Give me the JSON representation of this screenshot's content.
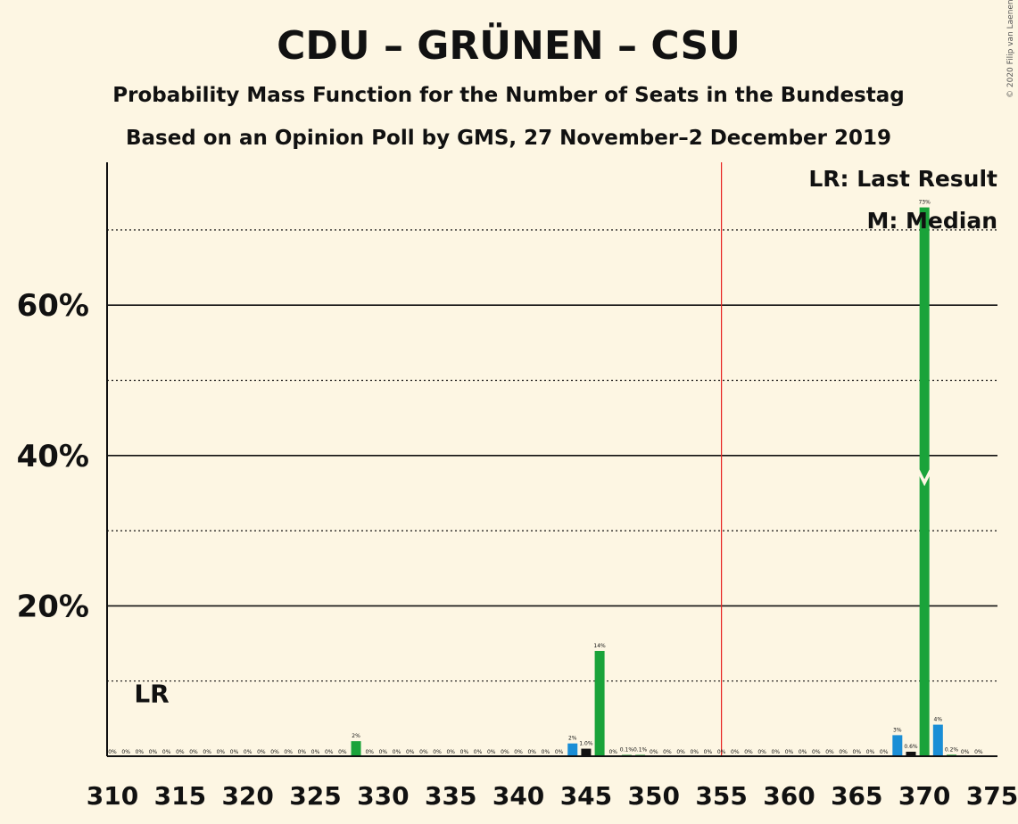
{
  "chart_data": {
    "type": "bar",
    "title": "CDU – GRÜNEN – CSU",
    "subtitle": "Probability Mass Function for the Number of Seats in the Bundestag",
    "subtitle2": "Based on an Opinion Poll by GMS, 27 November–2 December 2019",
    "copyright": "© 2020 Filip van Laenen",
    "xlabel": "",
    "ylabel": "",
    "xlim": [
      310,
      375
    ],
    "ylim": [
      0,
      79
    ],
    "x_ticks": [
      "310",
      "315",
      "320",
      "325",
      "330",
      "335",
      "340",
      "345",
      "350",
      "355",
      "360",
      "365",
      "370",
      "375"
    ],
    "y_ticks": [
      {
        "value": 20,
        "label": "20%"
      },
      {
        "value": 40,
        "label": "40%"
      },
      {
        "value": 60,
        "label": "60%"
      }
    ],
    "minor_gridlines": [
      10,
      30,
      50,
      70
    ],
    "majority_line": 355,
    "legend": {
      "lr": "LR: Last Result",
      "median": "M: Median",
      "position": "top-right"
    },
    "last_result": {
      "seat": 312,
      "label": "LR"
    },
    "median": {
      "seat": 370,
      "marker": "M"
    },
    "colors": {
      "green": "#1aa33a",
      "blue": "#1a8ed6",
      "black": "#111111",
      "majority": "#e8201e",
      "background": "#fdf6e3"
    },
    "bars": [
      {
        "x": 310,
        "p": 0,
        "label": "0%",
        "color": "green"
      },
      {
        "x": 311,
        "p": 0,
        "label": "0%",
        "color": "green"
      },
      {
        "x": 312,
        "p": 0,
        "label": "0%",
        "color": "green"
      },
      {
        "x": 313,
        "p": 0,
        "label": "0%",
        "color": "green"
      },
      {
        "x": 314,
        "p": 0,
        "label": "0%",
        "color": "green"
      },
      {
        "x": 315,
        "p": 0,
        "label": "0%",
        "color": "green"
      },
      {
        "x": 316,
        "p": 0,
        "label": "0%",
        "color": "green"
      },
      {
        "x": 317,
        "p": 0,
        "label": "0%",
        "color": "green"
      },
      {
        "x": 318,
        "p": 0,
        "label": "0%",
        "color": "green"
      },
      {
        "x": 319,
        "p": 0,
        "label": "0%",
        "color": "green"
      },
      {
        "x": 320,
        "p": 0,
        "label": "0%",
        "color": "green"
      },
      {
        "x": 321,
        "p": 0,
        "label": "0%",
        "color": "green"
      },
      {
        "x": 322,
        "p": 0,
        "label": "0%",
        "color": "green"
      },
      {
        "x": 323,
        "p": 0,
        "label": "0%",
        "color": "green"
      },
      {
        "x": 324,
        "p": 0,
        "label": "0%",
        "color": "green"
      },
      {
        "x": 325,
        "p": 0,
        "label": "0%",
        "color": "green"
      },
      {
        "x": 326,
        "p": 0,
        "label": "0%",
        "color": "green"
      },
      {
        "x": 327,
        "p": 0,
        "label": "0%",
        "color": "green"
      },
      {
        "x": 328,
        "p": 2,
        "label": "2%",
        "color": "green"
      },
      {
        "x": 329,
        "p": 0,
        "label": "0%",
        "color": "green"
      },
      {
        "x": 330,
        "p": 0,
        "label": "0%",
        "color": "green"
      },
      {
        "x": 331,
        "p": 0,
        "label": "0%",
        "color": "green"
      },
      {
        "x": 332,
        "p": 0,
        "label": "0%",
        "color": "green"
      },
      {
        "x": 333,
        "p": 0,
        "label": "0%",
        "color": "green"
      },
      {
        "x": 334,
        "p": 0,
        "label": "0%",
        "color": "green"
      },
      {
        "x": 335,
        "p": 0,
        "label": "0%",
        "color": "green"
      },
      {
        "x": 336,
        "p": 0,
        "label": "0%",
        "color": "green"
      },
      {
        "x": 337,
        "p": 0,
        "label": "0%",
        "color": "green"
      },
      {
        "x": 338,
        "p": 0,
        "label": "0%",
        "color": "green"
      },
      {
        "x": 339,
        "p": 0,
        "label": "0%",
        "color": "green"
      },
      {
        "x": 340,
        "p": 0,
        "label": "0%",
        "color": "green"
      },
      {
        "x": 341,
        "p": 0,
        "label": "0%",
        "color": "green"
      },
      {
        "x": 342,
        "p": 0,
        "label": "0%",
        "color": "green"
      },
      {
        "x": 343,
        "p": 0,
        "label": "0%",
        "color": "green"
      },
      {
        "x": 344,
        "p": 1.7,
        "label": "2%",
        "color": "blue"
      },
      {
        "x": 345,
        "p": 1.0,
        "label": "1.0%",
        "color": "black"
      },
      {
        "x": 346,
        "p": 14,
        "label": "14%",
        "color": "green"
      },
      {
        "x": 347,
        "p": 0,
        "label": "0%",
        "color": "green"
      },
      {
        "x": 348,
        "p": 0.1,
        "label": "0.1%",
        "color": "green"
      },
      {
        "x": 349,
        "p": 0.1,
        "label": "0.1%",
        "color": "green"
      },
      {
        "x": 350,
        "p": 0,
        "label": "0%",
        "color": "green"
      },
      {
        "x": 351,
        "p": 0,
        "label": "0%",
        "color": "green"
      },
      {
        "x": 352,
        "p": 0,
        "label": "0%",
        "color": "green"
      },
      {
        "x": 353,
        "p": 0,
        "label": "0%",
        "color": "green"
      },
      {
        "x": 354,
        "p": 0,
        "label": "0%",
        "color": "green"
      },
      {
        "x": 355,
        "p": 0,
        "label": "0%",
        "color": "green"
      },
      {
        "x": 356,
        "p": 0,
        "label": "0%",
        "color": "green"
      },
      {
        "x": 357,
        "p": 0,
        "label": "0%",
        "color": "green"
      },
      {
        "x": 358,
        "p": 0,
        "label": "0%",
        "color": "green"
      },
      {
        "x": 359,
        "p": 0,
        "label": "0%",
        "color": "green"
      },
      {
        "x": 360,
        "p": 0,
        "label": "0%",
        "color": "green"
      },
      {
        "x": 361,
        "p": 0,
        "label": "0%",
        "color": "green"
      },
      {
        "x": 362,
        "p": 0,
        "label": "0%",
        "color": "green"
      },
      {
        "x": 363,
        "p": 0,
        "label": "0%",
        "color": "green"
      },
      {
        "x": 364,
        "p": 0,
        "label": "0%",
        "color": "green"
      },
      {
        "x": 365,
        "p": 0,
        "label": "0%",
        "color": "green"
      },
      {
        "x": 366,
        "p": 0,
        "label": "0%",
        "color": "green"
      },
      {
        "x": 367,
        "p": 0,
        "label": "0%",
        "color": "green"
      },
      {
        "x": 368,
        "p": 2.8,
        "label": "3%",
        "color": "blue"
      },
      {
        "x": 369,
        "p": 0.6,
        "label": "0.6%",
        "color": "black"
      },
      {
        "x": 370,
        "p": 73,
        "label": "73%",
        "color": "green"
      },
      {
        "x": 371,
        "p": 4.2,
        "label": "4%",
        "color": "blue"
      },
      {
        "x": 372,
        "p": 0.2,
        "label": "0.2%",
        "color": "green"
      },
      {
        "x": 373,
        "p": 0,
        "label": "0%",
        "color": "green"
      },
      {
        "x": 374,
        "p": 0,
        "label": "0%",
        "color": "green"
      }
    ]
  }
}
